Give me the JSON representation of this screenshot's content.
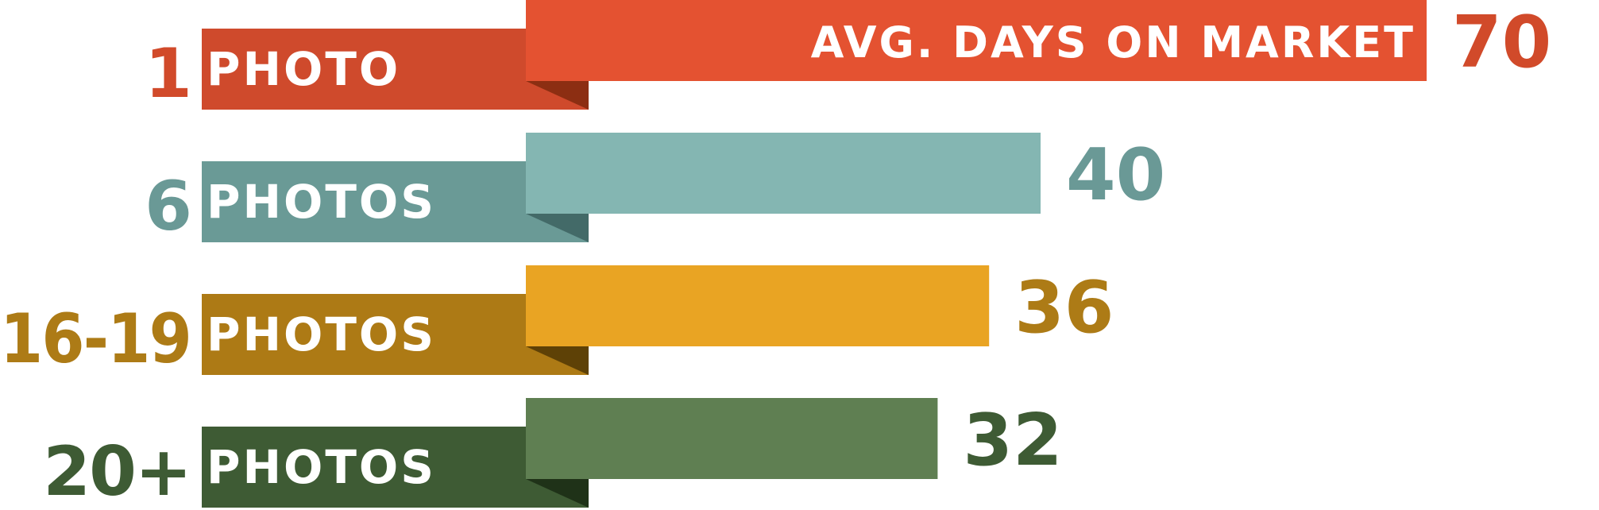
{
  "chart_data": {
    "type": "bar",
    "orientation": "horizontal",
    "title": "AVG. DAYS ON MARKET",
    "rows": [
      {
        "count": "1",
        "unit": "PHOTO",
        "value": 70,
        "color": "#E45231",
        "label_color": "#CF4A2C",
        "fold_color": "#8C2E12",
        "text_color": "#D14A2A"
      },
      {
        "count": "6",
        "unit": "PHOTOS",
        "value": 40,
        "color": "#84B6B2",
        "label_color": "#6A9A96",
        "fold_color": "#436A68",
        "text_color": "#6A9996"
      },
      {
        "count": "16-19",
        "unit": "PHOTOS",
        "value": 36,
        "color": "#E9A423",
        "label_color": "#AD7A15",
        "fold_color": "#5E4106",
        "text_color": "#AD7B16"
      },
      {
        "count": "20+",
        "unit": "PHOTOS",
        "value": 32,
        "color": "#5F7F52",
        "label_color": "#3E5B34",
        "fold_color": "#1F3218",
        "text_color": "#3E5B34"
      }
    ]
  }
}
